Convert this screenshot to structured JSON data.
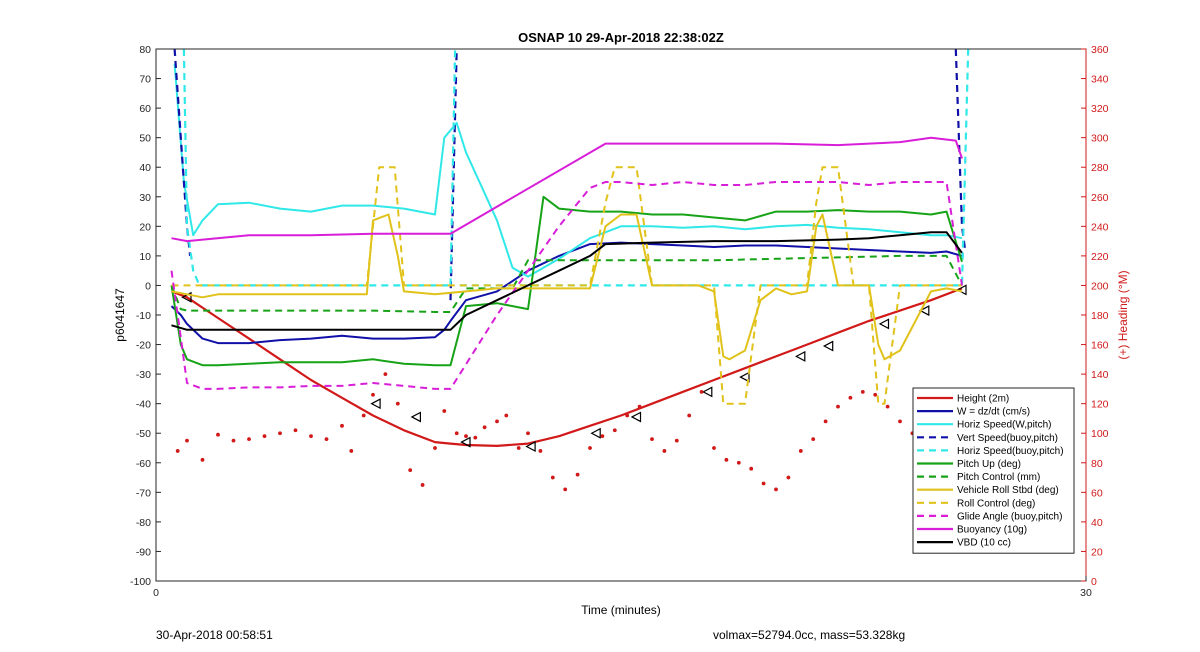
{
  "chart_data": {
    "type": "line",
    "title": "OSNAP 10 29-Apr-2018 22:38:02Z",
    "xlabel": "Time (minutes)",
    "ylabel": "p6041647",
    "y2label": "(+) Heading (°M)",
    "xlim": [
      0,
      30
    ],
    "ylim": [
      -100,
      80
    ],
    "y2lim": [
      0,
      360
    ],
    "xticks": [
      "0",
      "30"
    ],
    "yticks": [
      "80",
      "70",
      "60",
      "50",
      "40",
      "30",
      "20",
      "10",
      "0",
      "-10",
      "-20",
      "-30",
      "-40",
      "-50",
      "-60",
      "-70",
      "-80",
      "-90",
      "-100"
    ],
    "y2ticks": [
      "360",
      "340",
      "320",
      "300",
      "280",
      "260",
      "240",
      "220",
      "200",
      "180",
      "160",
      "140",
      "120",
      "100",
      "80",
      "60",
      "40",
      "20",
      "0"
    ],
    "grid": false,
    "legend_position": "lower-right",
    "colors": {
      "red": "#d11919",
      "blue": "#1010a8",
      "cyan": "#30e8e8",
      "green": "#17a317",
      "yellow": "#e1c21a",
      "magenta": "#d81ed8",
      "black": "#000000",
      "axis_right": "#d11919"
    },
    "legend": [
      {
        "label": "Height (2m)",
        "color": "#d11919",
        "dash": "solid"
      },
      {
        "label": "W = dz/dt (cm/s)",
        "color": "#1010a8",
        "dash": "solid"
      },
      {
        "label": "Horiz Speed(W,pitch)",
        "color": "#30e8e8",
        "dash": "solid"
      },
      {
        "label": "Vert Speed(buoy,pitch)",
        "color": "#1010a8",
        "dash": "dashed"
      },
      {
        "label": "Horiz Speed(buoy,pitch)",
        "color": "#30e8e8",
        "dash": "dashed"
      },
      {
        "label": "Pitch Up (deg)",
        "color": "#17a317",
        "dash": "solid"
      },
      {
        "label": "Pitch Control (mm)",
        "color": "#17a317",
        "dash": "dashed"
      },
      {
        "label": "Vehicle Roll Stbd (deg)",
        "color": "#e1c21a",
        "dash": "solid"
      },
      {
        "label": "Roll Control (deg)",
        "color": "#e1c21a",
        "dash": "dashed"
      },
      {
        "label": "Glide Angle (buoy,pitch)",
        "color": "#d81ed8",
        "dash": "dashed"
      },
      {
        "label": "Buoyancy (10g)",
        "color": "#d81ed8",
        "dash": "solid"
      },
      {
        "label": "VBD (10 cc)",
        "color": "#000000",
        "dash": "solid"
      }
    ],
    "series": [
      {
        "name": "Height (2m)",
        "color": "#d11919",
        "dash": "solid",
        "width": 2.2,
        "x": [
          0.5,
          1.0,
          2.0,
          3.0,
          4.0,
          5.0,
          6.0,
          7.0,
          8.0,
          9.0,
          9.5,
          10.0,
          11.0,
          12.0,
          13.0,
          14.0,
          15.0,
          16.0,
          17.0,
          18.0,
          19.0,
          20.0,
          21.0,
          22.0,
          23.0,
          24.0,
          25.0,
          26.0
        ],
        "y": [
          -2,
          -4,
          -11,
          -18,
          -25,
          -32,
          -38,
          -44,
          -49,
          -53,
          -53.5,
          -54,
          -54.3,
          -53.5,
          -51,
          -47.5,
          -44,
          -40,
          -36,
          -32,
          -28,
          -24,
          -20,
          -16,
          -12,
          -8.5,
          -5,
          -1
        ]
      },
      {
        "name": "Height markers",
        "color": "#000000",
        "marker": "triangle-left",
        "x": [
          1.0,
          7.1,
          8.4,
          10.0,
          12.1,
          14.2,
          15.5,
          17.8,
          19.0,
          20.8,
          21.7,
          23.5,
          24.8,
          26.0
        ],
        "y": [
          -4,
          -40,
          -44.5,
          -53,
          -54.5,
          -50,
          -44.5,
          -36,
          -31,
          -24,
          -20.5,
          -13,
          -8.5,
          -1.5
        ]
      },
      {
        "name": "Heading dots",
        "color": "#d11919",
        "marker": "dot",
        "axis": "right",
        "x": [
          0.7,
          1.0,
          1.5,
          2.0,
          2.5,
          3.0,
          3.5,
          4.0,
          4.5,
          5.0,
          5.5,
          6.0,
          6.3,
          6.7,
          7.0,
          7.4,
          7.8,
          8.2,
          8.6,
          9.0,
          9.3,
          9.7,
          10.0,
          10.3,
          10.6,
          11.0,
          11.3,
          11.7,
          12.0,
          12.4,
          12.8,
          13.2,
          13.6,
          14.0,
          14.4,
          14.8,
          15.2,
          15.6,
          16.0,
          16.4,
          16.8,
          17.2,
          17.6,
          18.0,
          18.4,
          18.8,
          19.2,
          19.6,
          20.0,
          20.4,
          20.8,
          21.2,
          21.6,
          22.0,
          22.4,
          22.8,
          23.2,
          23.6,
          24.0,
          24.4,
          24.8,
          25.2,
          25.6,
          26.0
        ],
        "y": [
          88,
          95,
          82,
          99,
          95,
          96,
          98,
          100,
          102,
          98,
          96,
          105,
          88,
          112,
          126,
          140,
          120,
          75,
          65,
          90,
          115,
          100,
          98,
          97,
          104,
          108,
          112,
          90,
          100,
          88,
          70,
          62,
          72,
          90,
          98,
          102,
          112,
          118,
          96,
          88,
          95,
          112,
          128,
          90,
          82,
          80,
          76,
          66,
          62,
          70,
          88,
          96,
          108,
          118,
          124,
          128,
          126,
          118,
          108,
          100,
          96,
          88,
          84,
          80
        ]
      },
      {
        "name": "W = dz/dt (cm/s)",
        "color": "#1010a8",
        "dash": "solid",
        "width": 2,
        "x": [
          0.5,
          0.8,
          1.0,
          1.5,
          2.0,
          3.0,
          4.0,
          5.0,
          6.0,
          7.0,
          8.0,
          9.0,
          9.3,
          9.5,
          10.0,
          11.0,
          12.0,
          13.0,
          14.0,
          15.0,
          16.0,
          17.0,
          18.0,
          19.0,
          20.0,
          21.0,
          22.0,
          23.0,
          24.0,
          25.0,
          25.5,
          26.0
        ],
        "y": [
          -7,
          -10,
          -13,
          -18,
          -19.5,
          -19.5,
          -18.5,
          -18,
          -17,
          -18,
          -18,
          -17.5,
          -15,
          -12,
          -5,
          -2,
          5,
          10,
          14,
          14.5,
          14,
          13.5,
          13,
          13.5,
          13.5,
          13,
          12.5,
          12,
          11.5,
          11,
          11.5,
          10
        ]
      },
      {
        "name": "Horiz Speed(W,pitch)",
        "color": "#30e8e8",
        "dash": "solid",
        "width": 2,
        "x": [
          0.6,
          0.9,
          1.2,
          1.5,
          2.0,
          3.0,
          4.0,
          5.0,
          6.0,
          7.0,
          8.0,
          9.0,
          9.3,
          9.7,
          10.0,
          11.0,
          11.5,
          12.0,
          13.0,
          14.0,
          15.0,
          16.0,
          17.0,
          18.0,
          19.0,
          20.0,
          21.0,
          22.0,
          23.0,
          24.0,
          25.0,
          25.5,
          26.0
        ],
        "y": [
          75,
          35,
          17,
          22,
          27.5,
          28,
          26,
          25,
          27,
          27,
          26,
          24,
          50,
          55,
          45,
          22,
          6,
          3,
          9,
          16,
          20,
          20,
          19.5,
          20,
          19,
          20,
          20.5,
          19.5,
          19,
          18,
          17,
          17,
          16
        ]
      },
      {
        "name": "Vert Speed(buoy,pitch)",
        "color": "#1010a8",
        "dash": "dashed",
        "width": 2.2,
        "segments": [
          {
            "x": [
              0.6,
              1.0,
              1.1
            ],
            "y": [
              80,
              20,
              10
            ]
          },
          {
            "x": [
              9.5,
              9.7
            ],
            "y": [
              -5,
              80
            ]
          },
          {
            "x": [
              25.8,
              26.0,
              26.1
            ],
            "y": [
              80,
              20,
              12
            ]
          }
        ]
      },
      {
        "name": "Horiz Speed(buoy,pitch)",
        "color": "#30e8e8",
        "dash": "dashed",
        "width": 2.2,
        "segments": [
          {
            "x": [
              0.9,
              1.0,
              1.2,
              1.4,
              2.0,
              4.0,
              6.0,
              8.0,
              9.5
            ],
            "y": [
              80,
              20,
              5,
              0,
              0,
              0,
              0,
              0,
              0
            ]
          },
          {
            "x": [
              9.5,
              9.65
            ],
            "y": [
              0,
              80
            ]
          },
          {
            "x": [
              9.8,
              12.0,
              14.0,
              16.0,
              18.0,
              20.0,
              22.0,
              24.0,
              25.5,
              26.0,
              26.2
            ],
            "y": [
              0,
              0,
              0,
              0,
              0,
              0,
              0,
              0,
              0,
              0,
              80
            ]
          }
        ]
      },
      {
        "name": "Pitch Up (deg)",
        "color": "#17a317",
        "dash": "solid",
        "width": 2,
        "x": [
          0.5,
          0.8,
          1.0,
          1.5,
          2.0,
          3.0,
          4.0,
          5.0,
          6.0,
          7.0,
          8.0,
          9.0,
          9.5,
          10.0,
          11.0,
          11.5,
          12.0,
          12.5,
          13.0,
          14.0,
          15.0,
          16.0,
          17.0,
          18.0,
          19.0,
          20.0,
          21.0,
          22.0,
          23.0,
          24.0,
          25.0,
          25.5,
          26.0
        ],
        "y": [
          0,
          -20,
          -25,
          -27,
          -27,
          -26.5,
          -26,
          -26,
          -26,
          -25,
          -26.5,
          -27,
          -27,
          -7,
          -6,
          -7,
          -8,
          30,
          26,
          25,
          25,
          24,
          24,
          23,
          22,
          25,
          25,
          25.5,
          25,
          25,
          24,
          25,
          8
        ]
      },
      {
        "name": "Pitch Control (mm)",
        "color": "#17a317",
        "dash": "dashed",
        "width": 2,
        "x": [
          0.5,
          0.8,
          1.0,
          3.0,
          5.0,
          7.0,
          9.0,
          9.5,
          10.0,
          11.5,
          12.0,
          14.0,
          16.0,
          18.0,
          20.0,
          22.0,
          24.0,
          25.5,
          26.0
        ],
        "y": [
          0,
          -8,
          -8.5,
          -8.5,
          -8.5,
          -8.5,
          -9,
          -9,
          -1,
          -1,
          8.5,
          8.5,
          8.5,
          8.5,
          9,
          9.5,
          10,
          10,
          0
        ]
      },
      {
        "name": "Vehicle Roll Stbd (deg)",
        "color": "#e1c21a",
        "dash": "solid",
        "width": 2,
        "x": [
          0.5,
          1.0,
          1.5,
          2.0,
          3.0,
          4.0,
          5.0,
          6.0,
          6.8,
          7.0,
          7.5,
          7.8,
          8.0,
          9.0,
          10.0,
          11.0,
          12.0,
          13.0,
          14.0,
          14.5,
          15.0,
          15.5,
          16.0,
          17.0,
          17.5,
          18.0,
          18.3,
          18.5,
          19.0,
          19.5,
          20.0,
          20.5,
          21.0,
          21.3,
          21.5,
          22.0,
          22.5,
          23.0,
          23.3,
          23.5,
          24.0,
          25.0,
          25.5,
          26.0
        ],
        "y": [
          -2,
          -3,
          -4,
          -3,
          -3,
          -3,
          -3,
          -3,
          -3,
          22,
          24,
          10,
          -2,
          -3,
          -2,
          -1,
          -1,
          -1,
          -1,
          20,
          24,
          24,
          0,
          0,
          0,
          -2,
          -24,
          -25,
          -22,
          -5,
          -1,
          -3,
          -2,
          20,
          24,
          0,
          0,
          0,
          -20,
          -25,
          -22,
          -2,
          -1,
          -2
        ]
      },
      {
        "name": "Roll Control (deg)",
        "color": "#e1c21a",
        "dash": "dashed",
        "width": 2,
        "x": [
          0.5,
          1.0,
          3.0,
          5.0,
          6.8,
          7.2,
          7.7,
          8.0,
          9.0,
          10.0,
          12.0,
          14.0,
          14.5,
          14.8,
          15.5,
          16.0,
          17.0,
          17.8,
          18.0,
          18.3,
          19.0,
          19.5,
          20.0,
          21.0,
          21.3,
          21.5,
          22.0,
          22.5,
          23.0,
          23.3,
          23.5,
          24.0,
          25.0,
          26.0
        ],
        "y": [
          0,
          0,
          0,
          0,
          0,
          40,
          40,
          0,
          0,
          0,
          0,
          0,
          28,
          40,
          40,
          0,
          0,
          0,
          0,
          -40,
          -40,
          0,
          0,
          0,
          28,
          40,
          40,
          0,
          0,
          -40,
          -40,
          0,
          0,
          0
        ]
      },
      {
        "name": "Glide Angle (buoy,pitch)",
        "color": "#d81ed8",
        "dash": "dashed",
        "width": 2,
        "x": [
          0.5,
          0.7,
          1.0,
          1.5,
          2.0,
          3.0,
          4.0,
          5.0,
          6.0,
          7.0,
          8.0,
          9.0,
          9.5,
          11.0,
          12.0,
          13.0,
          14.0,
          14.5,
          15.0,
          16.0,
          17.0,
          18.0,
          19.0,
          20.0,
          21.0,
          22.0,
          23.0,
          24.0,
          25.0,
          25.5,
          26.0
        ],
        "y": [
          5,
          -10,
          -33,
          -35,
          -35,
          -34.5,
          -34.5,
          -34,
          -34,
          -33,
          -34,
          -35,
          -35,
          -10,
          5,
          20,
          33,
          35,
          35,
          34,
          35,
          34,
          34,
          35,
          35,
          35,
          34,
          35,
          35,
          35,
          0
        ]
      },
      {
        "name": "Buoyancy (10g)",
        "color": "#d81ed8",
        "dash": "solid",
        "width": 2,
        "x": [
          0.5,
          1.0,
          3.0,
          5.0,
          7.0,
          9.0,
          9.5,
          14.5,
          16.0,
          18.0,
          20.0,
          22.0,
          23.0,
          24.0,
          25.0,
          25.8,
          26.0
        ],
        "y": [
          16,
          15,
          17,
          17,
          17.5,
          17.5,
          17.5,
          48,
          48,
          48,
          48,
          47.5,
          48,
          48.5,
          50,
          49,
          43
        ]
      },
      {
        "name": "VBD (10 cc)",
        "color": "#000000",
        "dash": "solid",
        "width": 2,
        "x": [
          0.5,
          1.0,
          1.5,
          3.0,
          5.0,
          7.0,
          9.0,
          9.5,
          10.0,
          11.0,
          12.0,
          13.0,
          14.0,
          14.5,
          16.0,
          18.0,
          20.0,
          22.0,
          23.0,
          24.0,
          25.0,
          25.5,
          26.0
        ],
        "y": [
          -13.5,
          -15,
          -15,
          -15,
          -15,
          -15,
          -15,
          -15,
          -10,
          -5,
          0,
          5,
          10,
          14,
          14.5,
          15,
          15,
          15.5,
          16,
          17,
          18,
          18,
          11
        ]
      }
    ]
  },
  "footer": {
    "left": "30-Apr-2018 00:58:51",
    "right": "volmax=52794.0cc, mass=53.328kg"
  }
}
